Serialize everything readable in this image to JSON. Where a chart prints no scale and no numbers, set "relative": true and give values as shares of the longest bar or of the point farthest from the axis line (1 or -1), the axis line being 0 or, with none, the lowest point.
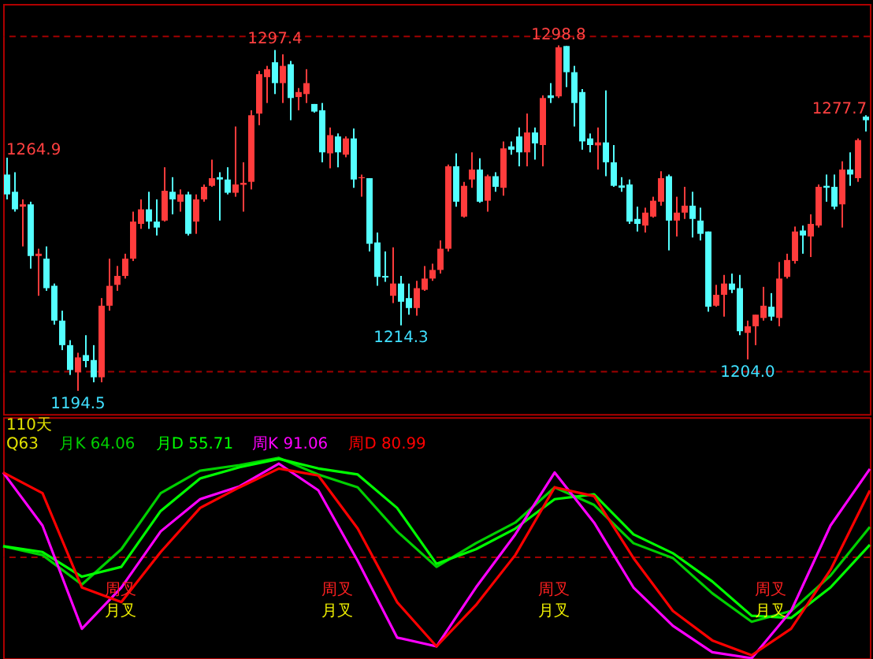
{
  "chart_data": [
    {
      "type": "candlestick",
      "ylim": [
        1187.5,
        1311.3
      ],
      "tick_labels": false,
      "grid": false,
      "categories": [
        null,
        null,
        null,
        null,
        null,
        null,
        null,
        null,
        null,
        null,
        null,
        null,
        null,
        null,
        null,
        null,
        null,
        null,
        null,
        null,
        null,
        null,
        null,
        null,
        null,
        null,
        null,
        null,
        null,
        null,
        null,
        null,
        null,
        null,
        null,
        null,
        null,
        null,
        null,
        null,
        null,
        null,
        null,
        null,
        null,
        null,
        null,
        null,
        null,
        null,
        null,
        null,
        null,
        null,
        null,
        null,
        null,
        null,
        null,
        null,
        null,
        null,
        null,
        null,
        null,
        null,
        null,
        null,
        null,
        null,
        null,
        null,
        null,
        null,
        null,
        null,
        null,
        null,
        null,
        null,
        null,
        null,
        null,
        null,
        null,
        null,
        null,
        null,
        null,
        null,
        null,
        null,
        null,
        null,
        null,
        null,
        null,
        null,
        null,
        null,
        null,
        null,
        null,
        null,
        null,
        null,
        null,
        null,
        null,
        null
      ],
      "ohlc": [
        [
          1259.8,
          1264.9,
          1252.3,
          1253.8
        ],
        [
          1254.6,
          1260.5,
          1248.6,
          1249.3
        ],
        [
          1250.1,
          1252.3,
          1238.1,
          1250.8
        ],
        [
          1250.8,
          1251.6,
          1231.4,
          1235.2
        ],
        [
          1235.2,
          1237.4,
          1223.2,
          1235.9
        ],
        [
          1234.4,
          1238.1,
          1224.7,
          1225.5
        ],
        [
          1226.2,
          1226.9,
          1214.5,
          1215.7
        ],
        [
          1215.7,
          1218.7,
          1206.8,
          1208.3
        ],
        [
          1208.3,
          1209.8,
          1199.3,
          1200.8
        ],
        [
          1200.1,
          1206.0,
          1194.5,
          1204.6
        ],
        [
          1205.3,
          1211.3,
          1201.6,
          1203.5
        ],
        [
          1203.8,
          1208.3,
          1197.1,
          1198.6
        ],
        [
          1198.6,
          1222.5,
          1197.1,
          1220.2
        ],
        [
          1220.2,
          1234.4,
          1218.7,
          1226.2
        ],
        [
          1226.5,
          1232.2,
          1224.7,
          1229.2
        ],
        [
          1229.2,
          1235.9,
          1228.4,
          1234.4
        ],
        [
          1234.4,
          1248.6,
          1233.7,
          1245.6
        ],
        [
          1244.9,
          1252.3,
          1243.4,
          1249.3
        ],
        [
          1249.3,
          1254.6,
          1243.4,
          1245.6
        ],
        [
          1245.6,
          1252.3,
          1241.4,
          1243.8
        ],
        [
          1245.9,
          1262.0,
          1245.6,
          1254.9
        ],
        [
          1254.6,
          1259.0,
          1247.8,
          1252.3
        ],
        [
          1251.6,
          1255.3,
          1248.6,
          1253.8
        ],
        [
          1253.8,
          1254.6,
          1241.4,
          1241.9
        ],
        [
          1245.6,
          1253.8,
          1241.9,
          1252.3
        ],
        [
          1252.3,
          1256.8,
          1251.6,
          1256.1
        ],
        [
          1256.4,
          1264.3,
          1256.1,
          1258.7
        ],
        [
          1259.0,
          1260.5,
          1245.9,
          1258.3
        ],
        [
          1258.3,
          1262.0,
          1253.8,
          1254.3
        ],
        [
          1254.3,
          1274.3,
          1253.1,
          1256.8
        ],
        [
          1256.7,
          1263.5,
          1248.6,
          1257.3
        ],
        [
          1257.6,
          1279.2,
          1255.3,
          1277.7
        ],
        [
          1278.2,
          1291.1,
          1274.7,
          1290.1
        ],
        [
          1289.2,
          1292.6,
          1281.4,
          1291.6
        ],
        [
          1293.7,
          1297.4,
          1284.1,
          1287.4
        ],
        [
          1287.4,
          1296.1,
          1281.4,
          1292.6
        ],
        [
          1293.1,
          1294.1,
          1276.2,
          1282.9
        ],
        [
          1283.2,
          1285.9,
          1279.2,
          1284.7
        ],
        [
          1284.1,
          1291.6,
          1281.4,
          1287.4
        ],
        [
          1281.1,
          1281.1,
          1278.5,
          1278.8
        ],
        [
          1279.2,
          1281.4,
          1263.5,
          1266.5
        ],
        [
          1266.2,
          1274.0,
          1261.7,
          1271.7
        ],
        [
          1271.3,
          1272.2,
          1262.0,
          1266.5
        ],
        [
          1265.8,
          1271.3,
          1265.0,
          1270.7
        ],
        [
          1270.7,
          1273.7,
          1255.8,
          1258.3
        ],
        [
          1258.7,
          1259.8,
          1253.1,
          1259.0
        ],
        [
          1258.7,
          1258.7,
          1236.6,
          1238.9
        ],
        [
          1239.3,
          1242.3,
          1226.2,
          1228.9
        ],
        [
          1229.2,
          1236.6,
          1227.4,
          1228.7
        ],
        [
          1223.2,
          1237.8,
          1221.0,
          1226.9
        ],
        [
          1226.9,
          1229.2,
          1214.3,
          1221.4
        ],
        [
          1222.5,
          1226.9,
          1217.5,
          1219.5
        ],
        [
          1219.5,
          1227.7,
          1217.2,
          1225.5
        ],
        [
          1225.0,
          1232.2,
          1224.7,
          1228.4
        ],
        [
          1228.4,
          1232.9,
          1227.7,
          1231.0
        ],
        [
          1231.0,
          1239.9,
          1229.9,
          1237.4
        ],
        [
          1237.4,
          1262.8,
          1236.6,
          1262.3
        ],
        [
          1262.3,
          1266.2,
          1250.1,
          1251.6
        ],
        [
          1247.1,
          1257.6,
          1246.8,
          1256.4
        ],
        [
          1258.3,
          1266.5,
          1255.8,
          1261.3
        ],
        [
          1261.3,
          1264.7,
          1251.3,
          1251.6
        ],
        [
          1251.9,
          1259.8,
          1248.6,
          1259.3
        ],
        [
          1259.3,
          1260.5,
          1254.6,
          1256.1
        ],
        [
          1255.8,
          1269.8,
          1253.4,
          1267.7
        ],
        [
          1268.3,
          1269.8,
          1265.8,
          1267.3
        ],
        [
          1271.3,
          1274.0,
          1262.3,
          1266.5
        ],
        [
          1266.5,
          1278.2,
          1262.3,
          1272.5
        ],
        [
          1272.5,
          1274.0,
          1264.3,
          1269.2
        ],
        [
          1268.7,
          1283.7,
          1262.3,
          1282.9
        ],
        [
          1283.7,
          1287.4,
          1281.4,
          1282.9
        ],
        [
          1283.4,
          1298.8,
          1282.9,
          1298.2
        ],
        [
          1298.6,
          1298.6,
          1286.2,
          1290.7
        ],
        [
          1290.7,
          1292.6,
          1274.3,
          1281.4
        ],
        [
          1284.7,
          1285.6,
          1267.3,
          1269.8
        ],
        [
          1270.7,
          1272.2,
          1266.5,
          1268.7
        ],
        [
          1268.6,
          1274.0,
          1261.3,
          1269.5
        ],
        [
          1269.5,
          1285.2,
          1259.3,
          1263.5
        ],
        [
          1263.5,
          1268.7,
          1256.1,
          1256.4
        ],
        [
          1256.5,
          1259.0,
          1254.6,
          1255.8
        ],
        [
          1256.8,
          1258.3,
          1244.9,
          1245.6
        ],
        [
          1246.4,
          1250.1,
          1242.6,
          1244.9
        ],
        [
          1244.4,
          1249.8,
          1242.3,
          1248.3
        ],
        [
          1247.1,
          1253.1,
          1246.8,
          1251.9
        ],
        [
          1251.6,
          1260.8,
          1250.4,
          1258.7
        ],
        [
          1259.3,
          1259.8,
          1236.9,
          1245.9
        ],
        [
          1245.9,
          1253.1,
          1241.1,
          1248.3
        ],
        [
          1248.3,
          1256.1,
          1246.4,
          1250.4
        ],
        [
          1250.4,
          1254.6,
          1240.8,
          1246.4
        ],
        [
          1245.9,
          1249.8,
          1239.9,
          1241.9
        ],
        [
          1242.6,
          1242.6,
          1218.4,
          1219.9
        ],
        [
          1220.2,
          1226.5,
          1219.9,
          1223.5
        ],
        [
          1223.5,
          1229.5,
          1216.9,
          1226.9
        ],
        [
          1226.9,
          1229.9,
          1224.0,
          1225.0
        ],
        [
          1225.5,
          1229.5,
          1211.3,
          1212.5
        ],
        [
          1212.0,
          1215.7,
          1204.0,
          1214.0
        ],
        [
          1214.0,
          1217.5,
          1208.3,
          1217.5
        ],
        [
          1216.5,
          1225.9,
          1215.7,
          1220.2
        ],
        [
          1219.9,
          1224.0,
          1215.7,
          1216.9
        ],
        [
          1216.5,
          1233.4,
          1214.0,
          1228.4
        ],
        [
          1228.9,
          1235.9,
          1228.4,
          1234.0
        ],
        [
          1233.7,
          1244.1,
          1232.9,
          1242.6
        ],
        [
          1242.9,
          1244.4,
          1235.9,
          1241.4
        ],
        [
          1241.1,
          1247.8,
          1234.9,
          1244.9
        ],
        [
          1244.4,
          1256.8,
          1243.8,
          1256.1
        ],
        [
          1256.4,
          1259.8,
          1251.6,
          1255.8
        ],
        [
          1256.1,
          1259.8,
          1249.3,
          1250.1
        ],
        [
          1250.8,
          1263.8,
          1243.8,
          1261.3
        ],
        [
          1261.3,
          1266.5,
          1256.4,
          1259.8
        ],
        [
          1258.7,
          1270.7,
          1257.6,
          1270.2
        ],
        [
          1277.3,
          1277.7,
          1272.8,
          1276.2
        ]
      ],
      "colors": [
        "#54ffff",
        "#54ffff",
        "#ff3c3c",
        "#54ffff",
        "#ff3c3c",
        "#54ffff",
        "#54ffff",
        "#54ffff",
        "#54ffff",
        "#ff3c3c",
        "#54ffff",
        "#54ffff",
        "#ff3c3c",
        "#ff3c3c",
        "#ff3c3c",
        "#ff3c3c",
        "#ff3c3c",
        "#ff3c3c",
        "#54ffff",
        "#54ffff",
        "#ff3c3c",
        "#54ffff",
        "#ff3c3c",
        "#54ffff",
        "#ff3c3c",
        "#ff3c3c",
        "#ff3c3c",
        "#54ffff",
        "#54ffff",
        "#ff3c3c",
        "#ff3c3c",
        "#ff3c3c",
        "#ff3c3c",
        "#ff3c3c",
        "#54ffff",
        "#ff3c3c",
        "#54ffff",
        "#ff3c3c",
        "#ff3c3c",
        "#54ffff",
        "#54ffff",
        "#ff3c3c",
        "#54ffff",
        "#ff3c3c",
        "#54ffff",
        "#ff3c3c",
        "#54ffff",
        "#54ffff",
        "#54ffff",
        "#ff3c3c",
        "#54ffff",
        "#54ffff",
        "#ff3c3c",
        "#ff3c3c",
        "#ff3c3c",
        "#ff3c3c",
        "#ff3c3c",
        "#54ffff",
        "#ff3c3c",
        "#ff3c3c",
        "#54ffff",
        "#ff3c3c",
        "#54ffff",
        "#ff3c3c",
        "#54ffff",
        "#54ffff",
        "#ff3c3c",
        "#54ffff",
        "#ff3c3c",
        "#54ffff",
        "#ff3c3c",
        "#54ffff",
        "#54ffff",
        "#54ffff",
        "#54ffff",
        "#ff3c3c",
        "#54ffff",
        "#54ffff",
        "#54ffff",
        "#54ffff",
        "#54ffff",
        "#ff3c3c",
        "#ff3c3c",
        "#ff3c3c",
        "#54ffff",
        "#ff3c3c",
        "#ff3c3c",
        "#54ffff",
        "#54ffff",
        "#54ffff",
        "#ff3c3c",
        "#ff3c3c",
        "#54ffff",
        "#54ffff",
        "#ff3c3c",
        "#ff3c3c",
        "#ff3c3c",
        "#54ffff",
        "#ff3c3c",
        "#ff3c3c",
        "#ff3c3c",
        "#54ffff",
        "#ff3c3c",
        "#ff3c3c",
        "#54ffff",
        "#54ffff",
        "#ff3c3c",
        "#54ffff",
        "#ff3c3c",
        "#54ffff"
      ],
      "ref_lines": [
        {
          "axis": "y",
          "value": 1301.5,
          "color": "#a00000",
          "line_style": "dashed"
        },
        {
          "axis": "y",
          "value": 1200.3,
          "color": "#a00000",
          "line_style": "dashed"
        }
      ],
      "annotations": [
        "1264.9",
        {
          "text": "1194.5",
          "y": 1194.5
        },
        {
          "text": "1297.4",
          "y": 1297.4
        },
        {
          "text": "1214.3",
          "y": 1214.3
        },
        {
          "text": "1298.8",
          "y": 1298.8
        },
        {
          "text": "1204.0",
          "y": 1204.0
        },
        "1277.7"
      ]
    },
    {
      "type": "line",
      "title": "Q63",
      "relative": true,
      "tick_labels": false,
      "grid": false,
      "line_style": "solid",
      "categories": [
        null,
        null,
        null,
        null,
        null,
        null,
        null,
        null,
        null,
        null,
        null,
        null,
        null,
        null,
        null,
        null,
        null,
        null,
        null,
        null,
        null,
        null,
        null
      ],
      "series": [
        {
          "name": "月K 64.06",
          "color": "#00d000",
          "values": [
            0.559,
            0.515,
            0.368,
            0.544,
            0.824,
            0.936,
            0.964,
            1.0,
            0.917,
            0.853,
            0.633,
            0.456,
            0.574,
            0.677,
            0.853,
            0.765,
            0.574,
            0.5,
            0.324,
            0.182,
            0.236,
            0.412,
            0.655
          ]
        },
        {
          "name": "月D 55.71",
          "color": "#00ff00",
          "values": [
            0.559,
            0.53,
            0.407,
            0.456,
            0.735,
            0.897,
            0.953,
            0.995,
            0.947,
            0.917,
            0.75,
            0.471,
            0.544,
            0.647,
            0.794,
            0.818,
            0.618,
            0.524,
            0.383,
            0.212,
            0.201,
            0.353,
            0.566
          ]
        },
        {
          "name": "周K 91.06",
          "color": "#ff00ff",
          "values": [
            0.927,
            0.662,
            0.147,
            0.353,
            0.633,
            0.794,
            0.858,
            0.971,
            0.838,
            0.486,
            0.103,
            0.059,
            0.353,
            0.618,
            0.927,
            0.677,
            0.353,
            0.162,
            0.03,
            0.0,
            0.236,
            0.662,
            0.945
          ]
        },
        {
          "name": "周D 80.99",
          "color": "#ff0000",
          "values": [
            0.927,
            0.824,
            0.353,
            0.28,
            0.53,
            0.75,
            0.853,
            0.947,
            0.912,
            0.647,
            0.28,
            0.059,
            0.265,
            0.515,
            0.853,
            0.809,
            0.5,
            0.236,
            0.089,
            0.015,
            0.147,
            0.441,
            0.837
          ]
        }
      ],
      "ref_lines": [
        {
          "axis": "y",
          "value": 0.504,
          "color": "#a00000",
          "line_style": "dashed"
        }
      ],
      "annotations": [
        "110天",
        "周叉",
        "月叉",
        "周叉",
        "月叉",
        "周叉",
        "月叉",
        "周叉",
        "月叉"
      ]
    }
  ]
}
